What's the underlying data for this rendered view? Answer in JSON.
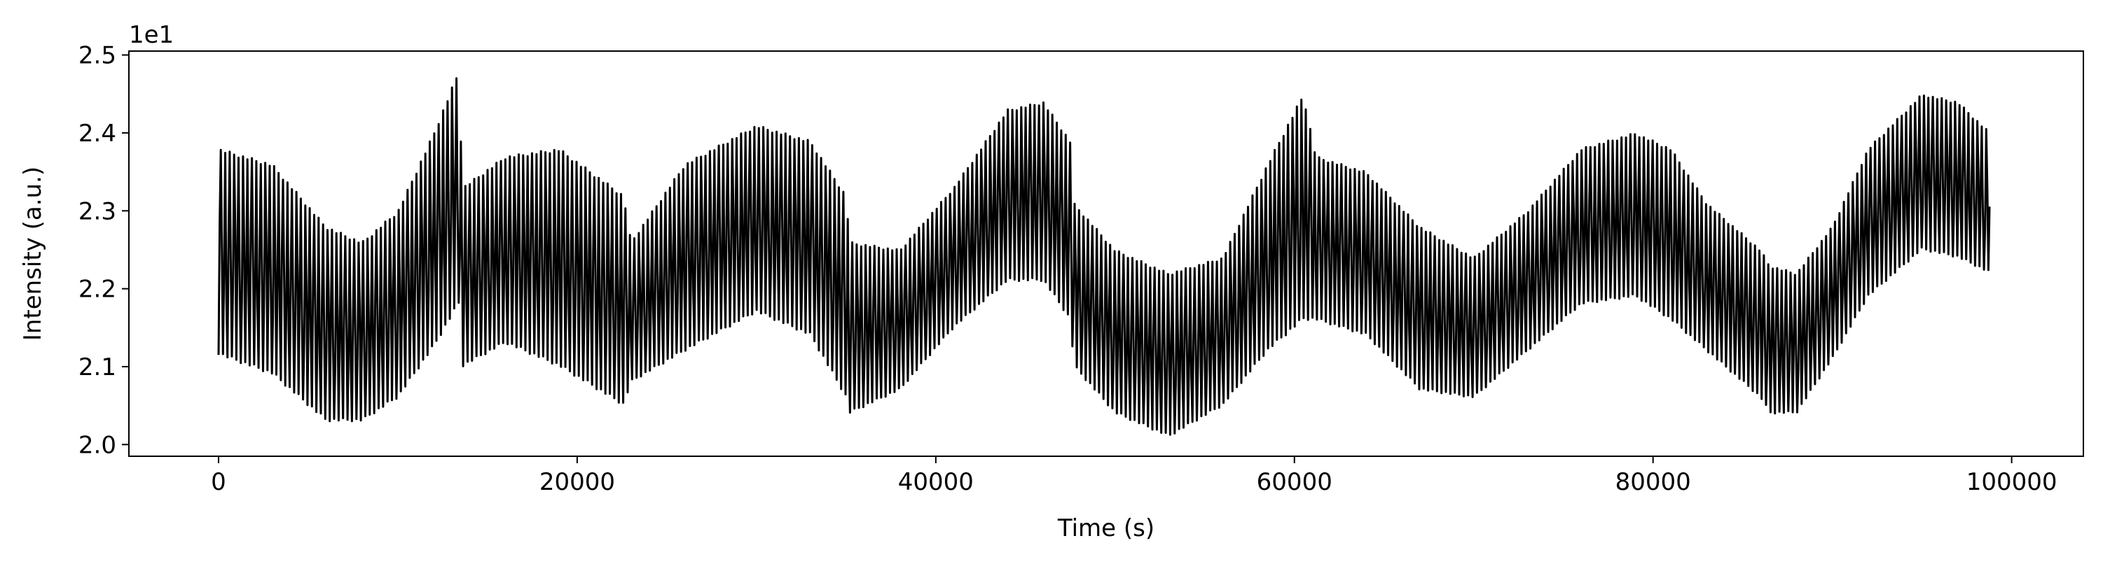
{
  "chart_data": {
    "type": "line",
    "title": "",
    "xlabel": "Time (s)",
    "ylabel": "Intensity (a.u.)",
    "y_offset_text": "1e1",
    "xlim": [
      -5000,
      104000
    ],
    "ylim": [
      1.985,
      2.505
    ],
    "x_ticks": [
      0,
      20000,
      40000,
      60000,
      80000,
      100000
    ],
    "x_tick_labels": [
      "0",
      "20000",
      "40000",
      "60000",
      "80000",
      "100000"
    ],
    "y_ticks": [
      2.0,
      2.1,
      2.2,
      2.3,
      2.4,
      2.5
    ],
    "y_tick_labels": [
      "2.0",
      "2.1",
      "2.2",
      "2.3",
      "2.4",
      "2.5"
    ],
    "grid": false,
    "line_color": "#000000",
    "series": [
      {
        "envelope": {
          "x": [
            0,
            3000,
            6000,
            8000,
            10000,
            12000,
            13400,
            13600,
            16000,
            19000,
            22600,
            23000,
            26000,
            30000,
            33000,
            35000,
            35200,
            38000,
            41000,
            44000,
            46000,
            47500,
            47700,
            50000,
            53000,
            56000,
            58500,
            60500,
            61200,
            64000,
            67000,
            70000,
            73000,
            76000,
            79000,
            81000,
            83000,
            86000,
            86500,
            88000,
            90000,
            92000,
            95000,
            97000,
            98800
          ],
          "lower": [
            2.115,
            2.09,
            2.03,
            2.03,
            2.06,
            2.125,
            2.18,
            2.1,
            2.13,
            2.1,
            2.05,
            2.08,
            2.12,
            2.17,
            2.14,
            2.06,
            2.04,
            2.07,
            2.15,
            2.21,
            2.21,
            2.16,
            2.1,
            2.04,
            2.01,
            2.05,
            2.12,
            2.16,
            2.16,
            2.14,
            2.07,
            2.06,
            2.12,
            2.18,
            2.19,
            2.16,
            2.12,
            2.06,
            2.04,
            2.04,
            2.11,
            2.19,
            2.25,
            2.24,
            2.22
          ],
          "upper": [
            2.38,
            2.36,
            2.28,
            2.26,
            2.3,
            2.4,
            2.48,
            2.33,
            2.37,
            2.38,
            2.32,
            2.26,
            2.36,
            2.41,
            2.39,
            2.32,
            2.26,
            2.25,
            2.33,
            2.43,
            2.44,
            2.39,
            2.31,
            2.25,
            2.22,
            2.24,
            2.36,
            2.45,
            2.37,
            2.35,
            2.28,
            2.24,
            2.3,
            2.38,
            2.4,
            2.38,
            2.31,
            2.25,
            2.23,
            2.22,
            2.28,
            2.38,
            2.45,
            2.44,
            2.4
          ]
        },
        "x_end": 98800
      }
    ]
  }
}
